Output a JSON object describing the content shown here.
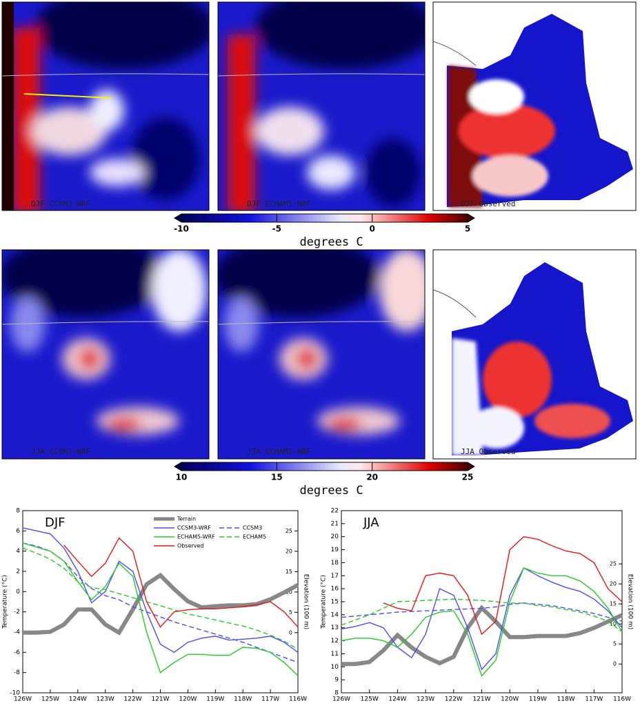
{
  "maps": [
    {
      "label": "DJF CCSM3-WRF"
    },
    {
      "label": "DJF ECHAM5-WRF"
    },
    {
      "label": "DJF Observed"
    },
    {
      "label": "JJA CCSM3-WRF"
    },
    {
      "label": "JJA ECHAM5-WRF"
    },
    {
      "label": "JJA Observed"
    }
  ],
  "colorbars": [
    {
      "lim": [
        -10,
        5
      ],
      "ticks": [
        -10,
        -5,
        0,
        5
      ],
      "label": "degrees C"
    },
    {
      "lim": [
        10,
        25
      ],
      "ticks": [
        10,
        15,
        20,
        25
      ],
      "label": "degrees C"
    }
  ],
  "chart_data": [
    {
      "type": "line",
      "title": "DJF",
      "y_label": "Temperature (°C)",
      "y2_label": "Elevation (100 m)",
      "legend": "upper center",
      "x": [
        -126,
        -125.5,
        -125,
        -124.5,
        -124,
        -123.5,
        -123,
        -122.5,
        -122,
        -121.5,
        -121,
        -120.5,
        -120,
        -119.5,
        -119,
        -118.5,
        -118,
        -117.5,
        -117,
        -116.5,
        -116
      ],
      "xlim": [
        -126,
        -116
      ],
      "xticks": [
        {
          "value": -126,
          "label": "126W"
        },
        {
          "value": -125,
          "label": "125W"
        },
        {
          "value": -124,
          "label": "124W"
        },
        {
          "value": -123,
          "label": "123W"
        },
        {
          "value": -122,
          "label": "122W"
        },
        {
          "value": -121,
          "label": "121W"
        },
        {
          "value": -120,
          "label": "120W"
        },
        {
          "value": -119,
          "label": "119W"
        },
        {
          "value": -118,
          "label": "118W"
        },
        {
          "value": -117,
          "label": "117W"
        },
        {
          "value": -116,
          "label": "116W"
        }
      ],
      "ylim": [
        -10,
        8
      ],
      "yticks": [
        -10,
        -8,
        -6,
        -4,
        -2,
        0,
        2,
        4,
        6,
        8
      ],
      "y2lim": [
        -14.8,
        30
      ],
      "y2ticks": [
        0,
        5,
        10,
        15,
        20,
        25
      ],
      "series": [
        {
          "name": "Terrain",
          "color": "#888888",
          "axis": "y2",
          "style": "thick",
          "values": [
            0,
            0,
            0.2,
            2,
            5.7,
            5.7,
            2,
            0,
            5.7,
            11.9,
            14.1,
            10.7,
            7.7,
            6.2,
            6.5,
            6.7,
            6.7,
            7,
            8.2,
            9.9,
            11.7
          ]
        },
        {
          "name": "CCSM3-WRF",
          "color": "#4a4aff",
          "style": "solid",
          "values": [
            6.3,
            6.0,
            5.7,
            4.3,
            2.0,
            -1.1,
            0,
            3.0,
            2.0,
            -2,
            -5.2,
            -6.0,
            -5.0,
            -4.6,
            -4.4,
            -4.8,
            -4.7,
            -4.6,
            -4.4,
            -5.0,
            -6.0
          ]
        },
        {
          "name": "CCSM3",
          "color": "#4a4aff",
          "style": "dashed",
          "values": [
            4.8,
            4.5,
            4.0,
            3.0,
            1.5,
            0.3,
            -0.4,
            -0.8,
            -1.5,
            -2.0,
            -2.5,
            -3.0,
            -3.4,
            -3.8,
            -4.2,
            -4.6,
            -5.0,
            -5.5,
            -6.0,
            -6.5,
            -7.0
          ]
        },
        {
          "name": "ECHAM5-WRF",
          "color": "#22cc22",
          "style": "solid",
          "values": [
            4.8,
            4.4,
            4.0,
            3.0,
            1.0,
            -0.8,
            0.5,
            2.8,
            1.5,
            -4.0,
            -8.0,
            -7.0,
            -6.2,
            -6.2,
            -6.3,
            -6.3,
            -5.5,
            -5.6,
            -6.0,
            -7.0,
            -8.3
          ]
        },
        {
          "name": "ECHAM5",
          "color": "#22cc22",
          "style": "dashed",
          "values": [
            4.3,
            3.8,
            3.2,
            2.3,
            1.0,
            0.4,
            0.2,
            -0.2,
            -0.6,
            -1.0,
            -1.4,
            -1.8,
            -2.2,
            -2.5,
            -2.8,
            -3.1,
            -3.4,
            -3.8,
            -4.3,
            -4.9,
            -5.7
          ]
        },
        {
          "name": "Observed",
          "color": "#ee1111",
          "style": "solid",
          "values": [
            null,
            null,
            null,
            4.6,
            3.0,
            1.5,
            2.8,
            5.3,
            4.0,
            -1.0,
            -3.5,
            -2.0,
            -1.8,
            -1.7,
            -1.7,
            -1.6,
            -1.5,
            -1.3,
            -1.0,
            -2.0,
            -3.5
          ]
        }
      ]
    },
    {
      "type": "line",
      "title": "JJA",
      "y_label": "Temperature (°C)",
      "y2_label": "Elevation (100 m)",
      "x": [
        -126,
        -125.5,
        -125,
        -124.5,
        -124,
        -123.5,
        -123,
        -122.5,
        -122,
        -121.5,
        -121,
        -120.5,
        -120,
        -119.5,
        -119,
        -118.5,
        -118,
        -117.5,
        -117,
        -116.5,
        -116
      ],
      "xlim": [
        -126,
        -116
      ],
      "xticks": [
        {
          "value": -126,
          "label": "126W"
        },
        {
          "value": -125,
          "label": "125W"
        },
        {
          "value": -124,
          "label": "124W"
        },
        {
          "value": -123,
          "label": "123W"
        },
        {
          "value": -122,
          "label": "122W"
        },
        {
          "value": -121,
          "label": "121W"
        },
        {
          "value": -120,
          "label": "120W"
        },
        {
          "value": -119,
          "label": "119W"
        },
        {
          "value": -118,
          "label": "118W"
        },
        {
          "value": -117,
          "label": "117W"
        },
        {
          "value": -116,
          "label": "116W"
        }
      ],
      "ylim": [
        8,
        22
      ],
      "yticks": [
        8,
        9,
        10,
        11,
        12,
        13,
        14,
        15,
        16,
        17,
        18,
        19,
        20,
        21,
        22
      ],
      "y2lim": [
        -7.2,
        38.3
      ],
      "y2ticks": [
        0,
        5,
        10,
        15,
        20,
        25
      ],
      "series": [
        {
          "color": "#888888",
          "axis": "y2",
          "style": "thick",
          "values": [
            0,
            0,
            0.5,
            3.4,
            7.2,
            4.1,
            1.8,
            0.2,
            1.8,
            9,
            14.0,
            10.6,
            6.7,
            6.7,
            7.0,
            7.0,
            7.0,
            7.7,
            9.0,
            10.6,
            12.2
          ]
        },
        {
          "color": "#4a4aff",
          "style": "solid",
          "values": [
            12.9,
            13.1,
            13.4,
            13.0,
            11.5,
            10.7,
            12.5,
            16.0,
            15.5,
            13.0,
            9.8,
            11,
            15.5,
            17.6,
            17.0,
            16.5,
            16.1,
            15.8,
            15.2,
            14.3,
            13.0
          ]
        },
        {
          "color": "#4a4aff",
          "style": "dashed",
          "values": [
            13.8,
            13.9,
            14.0,
            14.1,
            14.2,
            14.25,
            14.3,
            14.35,
            14.4,
            14.45,
            14.5,
            14.6,
            14.8,
            14.9,
            14.8,
            14.7,
            14.5,
            14.3,
            14.1,
            13.8,
            13.5
          ]
        },
        {
          "color": "#22cc22",
          "style": "solid",
          "values": [
            12.0,
            12.2,
            12.2,
            12.0,
            11.5,
            12.5,
            13.8,
            14.2,
            14.3,
            12.5,
            9.3,
            10.5,
            15.0,
            17.6,
            17.2,
            17.0,
            17.0,
            16.6,
            15.8,
            14.5,
            12.7
          ]
        },
        {
          "color": "#22cc22",
          "style": "dashed",
          "values": [
            13.2,
            13.6,
            14.0,
            14.5,
            15.0,
            15.05,
            15.1,
            15.15,
            15.2,
            15.15,
            15.1,
            15.0,
            14.9,
            14.9,
            14.7,
            14.6,
            14.4,
            14.2,
            13.9,
            13.5,
            12.7
          ]
        },
        {
          "color": "#ee1111",
          "style": "solid",
          "values": [
            null,
            null,
            null,
            14.9,
            14.5,
            14.3,
            17.0,
            17.2,
            17.0,
            15.5,
            12.5,
            13.5,
            19.0,
            20.0,
            19.8,
            19.3,
            18.9,
            18.7,
            18.0,
            16.0,
            15.0
          ]
        }
      ]
    }
  ]
}
